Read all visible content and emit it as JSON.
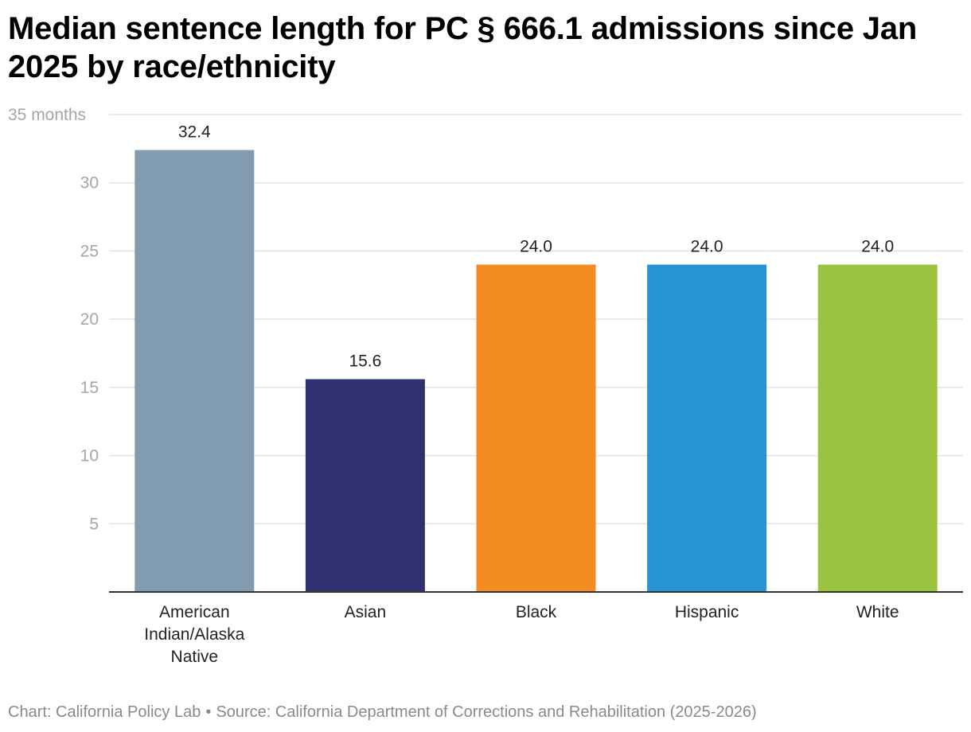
{
  "chart_data": {
    "type": "bar",
    "title": "Median sentence length for PC § 666.1 admissions since Jan 2025 by race/ethnicity",
    "categories": [
      [
        "American",
        "Indian/Alaska",
        "Native"
      ],
      [
        "Asian"
      ],
      [
        "Black"
      ],
      [
        "Hispanic"
      ],
      [
        "White"
      ]
    ],
    "values": [
      32.4,
      15.6,
      24.0,
      24.0,
      24.0
    ],
    "value_labels": [
      "32.4",
      "15.6",
      "24.0",
      "24.0",
      "24.0"
    ],
    "colors": [
      "#819cb1",
      "#2e316d",
      "#f48b22",
      "#2695d3",
      "#9ac43f"
    ],
    "ylim": [
      0,
      35
    ],
    "yticks": [
      5,
      10,
      15,
      20,
      25,
      30,
      35
    ],
    "ytick_labels": [
      "5",
      "10",
      "15",
      "20",
      "25",
      "30",
      "35 months"
    ],
    "xlabel": "",
    "ylabel": "",
    "grid": true,
    "legend": "none"
  },
  "footer": {
    "chart_credit": "Chart: California Policy Lab",
    "separator": "•",
    "source": "Source: California Department of Corrections and Rehabilitation (2025-2026)"
  },
  "colors": {
    "grid": "#e3e3e3",
    "axis": "#333333",
    "tick_label": "#a6a6a6",
    "value_label": "#222222",
    "category_label": "#222222"
  }
}
